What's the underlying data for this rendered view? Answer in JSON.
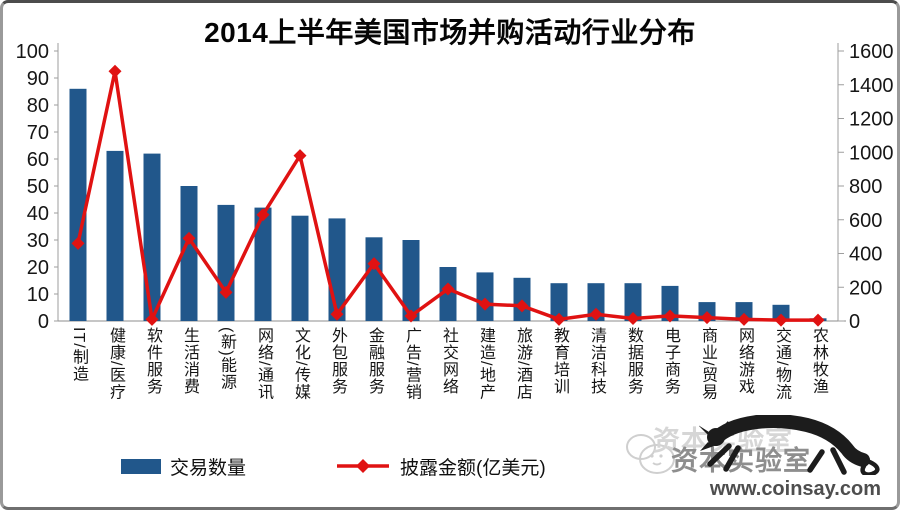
{
  "chart_data": {
    "type": "combo-bar-line",
    "title": "2014上半年美国市场并购活动行业分布",
    "categories": [
      "IT/制造",
      "健康/医疗",
      "软件服务",
      "生活消费",
      "(新)能源",
      "网络/通讯",
      "文化/传媒",
      "外包服务",
      "金融服务",
      "广告/营销",
      "社交网络",
      "建造/地产",
      "旅游/酒店",
      "教育培训",
      "清洁科技",
      "数据服务",
      "电子商务",
      "商业/贸易",
      "网络游戏",
      "交通/物流",
      "农林牧渔"
    ],
    "series": [
      {
        "name": "交易数量",
        "type": "bar",
        "axis": "left",
        "color": "#21578B",
        "values": [
          86,
          63,
          62,
          50,
          43,
          42,
          39,
          38,
          31,
          30,
          20,
          18,
          16,
          14,
          14,
          14,
          13,
          7,
          7,
          6,
          1
        ]
      },
      {
        "name": "披露金额(亿美元)",
        "type": "line",
        "axis": "right",
        "color": "#E01212",
        "values": [
          460,
          1480,
          10,
          490,
          170,
          630,
          980,
          40,
          340,
          30,
          190,
          100,
          90,
          10,
          40,
          15,
          30,
          20,
          10,
          5,
          5
        ]
      }
    ],
    "left_axis": {
      "min": 0,
      "max": 100,
      "step": 10
    },
    "right_axis": {
      "min": 0,
      "max": 1600,
      "step": 200
    },
    "legend_position": "bottom",
    "grid": false
  },
  "watermark": {
    "brand": "资本实验室",
    "url": "www.coinsay.com"
  }
}
